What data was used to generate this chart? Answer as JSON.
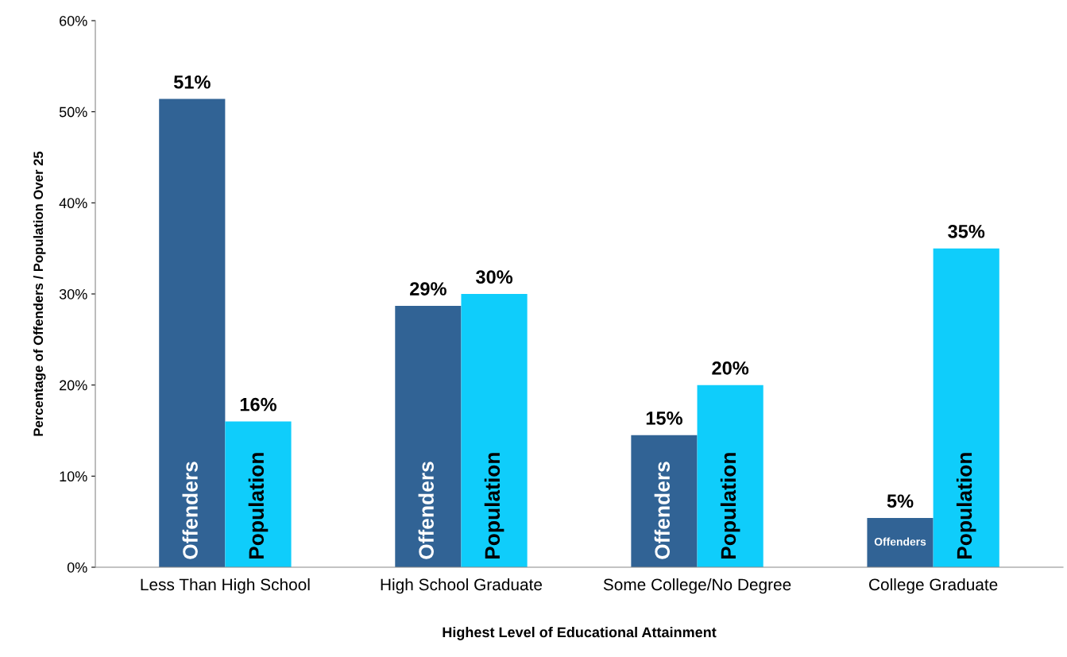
{
  "chart_data": {
    "type": "bar",
    "xlabel": "Highest Level of Educational Attainment",
    "ylabel": "Percentage of Offenders / Population Over 25",
    "categories": [
      "Less Than High School",
      "High School Graduate",
      "Some College/No Degree",
      "College Graduate"
    ],
    "series": [
      {
        "name": "Offenders",
        "color": "#316395",
        "values": [
          51.4,
          28.7,
          14.5,
          5.4
        ],
        "value_labels": [
          "51%",
          "29%",
          "15%",
          "5%"
        ]
      },
      {
        "name": "Population",
        "color": "#0fcdfb",
        "values": [
          16,
          30,
          20,
          35
        ],
        "value_labels": [
          "16%",
          "30%",
          "20%",
          "35%"
        ]
      }
    ],
    "ylim": [
      0,
      60
    ],
    "yticks": [
      {
        "value": 0,
        "label": "0%"
      },
      {
        "value": 10,
        "label": "10%"
      },
      {
        "value": 20,
        "label": "20%"
      },
      {
        "value": 30,
        "label": "30%"
      },
      {
        "value": 40,
        "label": "40%"
      },
      {
        "value": 50,
        "label": "50%"
      },
      {
        "value": 60,
        "label": "60%"
      }
    ],
    "grid": false,
    "legend": false
  }
}
